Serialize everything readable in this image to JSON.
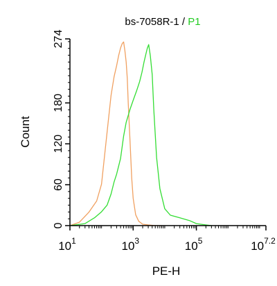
{
  "chart_data": {
    "type": "line",
    "title_parts": [
      {
        "text": "bs-7058R-1 / ",
        "color": "#000000"
      },
      {
        "text": "P1",
        "color": "#22cc22"
      }
    ],
    "xlabel": "PE-H",
    "ylabel": "Count",
    "x_scale": "log",
    "xlim": [
      10,
      15848932
    ],
    "ylim": [
      0,
      274
    ],
    "yticks": [
      0,
      60,
      120,
      180,
      274
    ],
    "ytick_labels": [
      "0",
      "60",
      "120",
      "180",
      "274"
    ],
    "xticks": [
      10,
      1000,
      100000,
      15848932
    ],
    "xtick_labels": [
      {
        "base": "10",
        "exp": "1"
      },
      {
        "base": "10",
        "exp": "3"
      },
      {
        "base": "10",
        "exp": "5"
      },
      {
        "base": "10",
        "exp": "7.2"
      }
    ],
    "series": [
      {
        "name": "",
        "color": "#f0a060",
        "x": [
          10,
          20,
          40,
          70,
          100,
          130,
          160,
          200,
          250,
          300,
          350,
          400,
          450,
          500,
          550,
          600,
          650,
          700,
          800,
          900,
          1000,
          1200,
          1500,
          2000,
          3000,
          5000,
          8000
        ],
        "y": [
          0,
          5,
          20,
          35,
          60,
          110,
          150,
          190,
          220,
          235,
          250,
          260,
          268,
          270,
          255,
          240,
          215,
          180,
          120,
          70,
          40,
          15,
          5,
          2,
          1,
          0,
          0
        ]
      },
      {
        "name": "",
        "color": "#33dd33",
        "x": [
          10,
          30,
          60,
          100,
          150,
          200,
          250,
          300,
          400,
          500,
          600,
          800,
          1000,
          1300,
          1600,
          1900,
          2200,
          2500,
          2800,
          3100,
          3500,
          4000,
          4500,
          5500,
          7000,
          10000,
          15000,
          30000,
          60000,
          100000,
          200000,
          300000
        ],
        "y": [
          0,
          3,
          10,
          20,
          30,
          45,
          65,
          75,
          100,
          130,
          150,
          170,
          185,
          200,
          210,
          225,
          240,
          250,
          260,
          265,
          250,
          220,
          170,
          100,
          55,
          25,
          15,
          10,
          6,
          3,
          1,
          0
        ]
      }
    ]
  }
}
